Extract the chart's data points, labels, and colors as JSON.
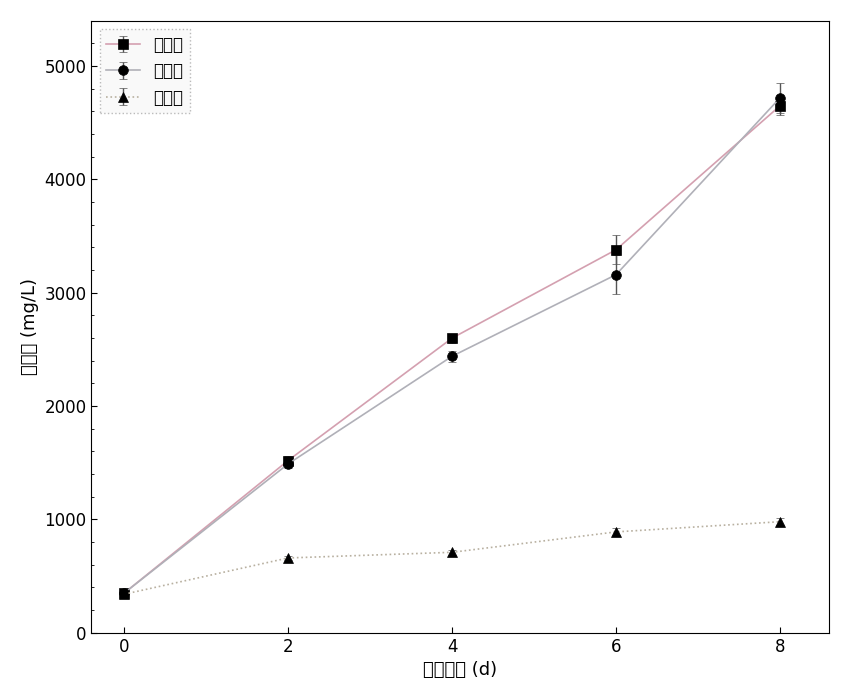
{
  "x": [
    0,
    2,
    4,
    6,
    8
  ],
  "series": [
    {
      "label": "磷充足",
      "values": [
        350,
        1520,
        2600,
        3380,
        4650
      ],
      "errors": [
        20,
        40,
        40,
        130,
        80
      ],
      "marker": "s",
      "color": "#d4a0b0",
      "linestyle": "-"
    },
    {
      "label": "磷限制",
      "values": [
        350,
        1490,
        2440,
        3160,
        4720
      ],
      "errors": [
        20,
        40,
        50,
        170,
        130
      ],
      "marker": "o",
      "color": "#b0b0b8",
      "linestyle": "-"
    },
    {
      "label": "磷缺乏",
      "values": [
        340,
        660,
        710,
        890,
        980
      ],
      "errors": [
        15,
        20,
        20,
        30,
        30
      ],
      "marker": "^",
      "color": "#b8b0a0",
      "linestyle": ":"
    }
  ],
  "xlabel": "培养时间 (d)",
  "ylabel": "生物量 (mg/L)",
  "xlim": [
    -0.4,
    8.6
  ],
  "ylim": [
    0,
    5400
  ],
  "yticks": [
    0,
    1000,
    2000,
    3000,
    4000,
    5000
  ],
  "xticks": [
    0,
    2,
    4,
    6,
    8
  ],
  "legend_loc": "upper left",
  "background_color": "#ffffff",
  "figsize": [
    8.5,
    7.0
  ],
  "dpi": 100
}
